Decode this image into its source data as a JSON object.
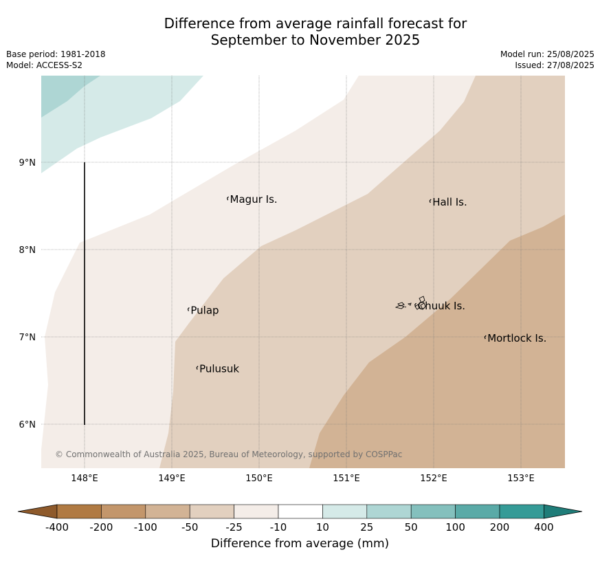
{
  "title": {
    "line1": "Difference from average rainfall forecast for",
    "line2": "September to November 2025"
  },
  "meta": {
    "base_period": "Base period: 1981-2018",
    "model": "Model: ACCESS-S2",
    "model_run": "Model run: 25/08/2025",
    "issued": "Issued: 27/08/2025"
  },
  "map": {
    "lat_ticks": [
      "9°N",
      "8°N",
      "7°N",
      "6°N"
    ],
    "lon_ticks": [
      "148°E",
      "149°E",
      "150°E",
      "151°E",
      "152°E",
      "153°E"
    ],
    "copyright": "© Commonwealth of Australia 2025, Bureau of Meteorology, supported by COSPPac",
    "places": [
      {
        "name": "Magur Is.",
        "lon": 149.65,
        "lat": 8.55
      },
      {
        "name": "Hall Is.",
        "lon": 151.97,
        "lat": 8.52
      },
      {
        "name": "Pulap",
        "lon": 149.2,
        "lat": 7.28
      },
      {
        "name": "Pulusuk",
        "lon": 149.3,
        "lat": 6.61
      },
      {
        "name": "Chuuk Is.",
        "lon": 151.8,
        "lat": 7.33
      },
      {
        "name": "Mortlock Is.",
        "lon": 152.6,
        "lat": 6.96
      }
    ],
    "colors": {
      "wet_25": "#aed6d4",
      "wet_10": "#d5eae8",
      "neutral": "#ffffff",
      "dry_25": "#f4ede8",
      "dry_50": "#e2d0bf",
      "dry_100": "#d2b395"
    }
  },
  "colorbar": {
    "label": "Difference from average (mm)",
    "ticks": [
      "-400",
      "-200",
      "-100",
      "-50",
      "-25",
      "-10",
      "10",
      "25",
      "50",
      "100",
      "200",
      "400"
    ],
    "colors": [
      "#b07a43",
      "#c3966b",
      "#d2b395",
      "#e2d0bf",
      "#f4ede8",
      "#ffffff",
      "#d5eae8",
      "#aed6d4",
      "#84c0bd",
      "#5aaaa7",
      "#359b97"
    ],
    "low_extend_color": "#8e5a2b",
    "high_extend_color": "#1f7d79"
  }
}
